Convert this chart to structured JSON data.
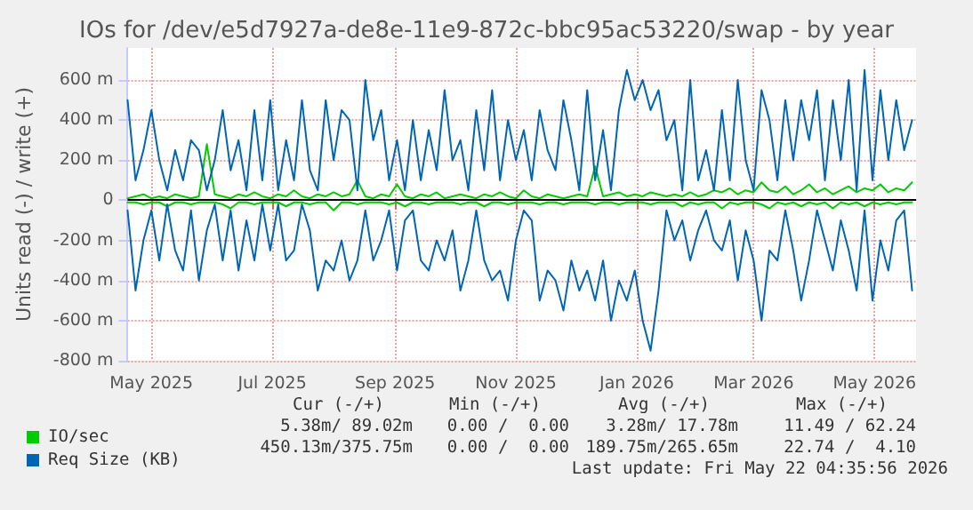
{
  "chart_data": {
    "type": "line",
    "title": "IOs for /dev/e5d7927a-de8e-11e9-872c-bbc95ac53220/swap - by year",
    "ylabel": "Units read (-) / write (+)",
    "x": [
      "2025-04-19",
      "2025-04-23",
      "2025-04-27",
      "2025-05-01",
      "2025-05-05",
      "2025-05-09",
      "2025-05-13",
      "2025-05-17",
      "2025-05-21",
      "2025-05-25",
      "2025-05-29",
      "2025-06-02",
      "2025-06-06",
      "2025-06-10",
      "2025-06-14",
      "2025-06-18",
      "2025-06-22",
      "2025-06-26",
      "2025-06-30",
      "2025-07-04",
      "2025-07-08",
      "2025-07-12",
      "2025-07-16",
      "2025-07-20",
      "2025-07-24",
      "2025-07-28",
      "2025-08-01",
      "2025-08-05",
      "2025-08-09",
      "2025-08-13",
      "2025-08-17",
      "2025-08-21",
      "2025-08-25",
      "2025-08-29",
      "2025-09-02",
      "2025-09-06",
      "2025-09-10",
      "2025-09-14",
      "2025-09-18",
      "2025-09-22",
      "2025-09-26",
      "2025-09-30",
      "2025-10-04",
      "2025-10-08",
      "2025-10-12",
      "2025-10-16",
      "2025-10-20",
      "2025-10-24",
      "2025-10-28",
      "2025-11-01",
      "2025-11-05",
      "2025-11-09",
      "2025-11-13",
      "2025-11-17",
      "2025-11-21",
      "2025-11-25",
      "2025-11-29",
      "2025-12-03",
      "2025-12-07",
      "2025-12-11",
      "2025-12-15",
      "2025-12-19",
      "2025-12-23",
      "2025-12-27",
      "2025-12-31",
      "2026-01-04",
      "2026-01-08",
      "2026-01-12",
      "2026-01-16",
      "2026-01-20",
      "2026-01-24",
      "2026-01-28",
      "2026-02-01",
      "2026-02-05",
      "2026-02-09",
      "2026-02-13",
      "2026-02-17",
      "2026-02-21",
      "2026-02-25",
      "2026-03-01",
      "2026-03-05",
      "2026-03-09",
      "2026-03-13",
      "2026-03-17",
      "2026-03-21",
      "2026-03-25",
      "2026-03-29",
      "2026-04-02",
      "2026-04-06",
      "2026-04-10",
      "2026-04-14",
      "2026-04-18",
      "2026-04-22",
      "2026-04-26",
      "2026-04-30",
      "2026-05-04",
      "2026-05-08",
      "2026-05-12",
      "2026-05-16",
      "2026-05-20"
    ],
    "series": [
      {
        "name": "IO/sec",
        "color": "#00cc00",
        "values": [
          10,
          20,
          30,
          10,
          20,
          10,
          30,
          20,
          10,
          20,
          280,
          30,
          20,
          10,
          30,
          20,
          40,
          20,
          10,
          30,
          20,
          50,
          20,
          10,
          30,
          20,
          40,
          20,
          30,
          100,
          20,
          10,
          30,
          20,
          80,
          20,
          10,
          30,
          20,
          40,
          10,
          20,
          30,
          20,
          10,
          30,
          20,
          40,
          20,
          10,
          50,
          20,
          10,
          30,
          20,
          10,
          20,
          30,
          20,
          170,
          20,
          30,
          40,
          20,
          30,
          20,
          40,
          30,
          20,
          30,
          20,
          40,
          20,
          30,
          50,
          40,
          60,
          30,
          50,
          40,
          90,
          50,
          40,
          70,
          30,
          50,
          80,
          40,
          60,
          30,
          50,
          70,
          40,
          60,
          50,
          80,
          40,
          60,
          50,
          90
        ]
      },
      {
        "color": "#00cc00",
        "values": [
          -10,
          -10,
          -20,
          -10,
          -10,
          -30,
          -10,
          -10,
          -20,
          -10,
          -10,
          -10,
          -20,
          -40,
          -10,
          -10,
          -20,
          -10,
          -10,
          -10,
          -30,
          -10,
          -10,
          -20,
          -10,
          -10,
          -50,
          -10,
          -10,
          -20,
          -10,
          -10,
          -10,
          -20,
          -10,
          -30,
          -10,
          -10,
          -20,
          -10,
          -10,
          -10,
          -20,
          -10,
          -10,
          -30,
          -10,
          -10,
          -20,
          -10,
          -10,
          -10,
          -20,
          -10,
          -10,
          -20,
          -10,
          -10,
          -10,
          -20,
          -10,
          -10,
          -20,
          -10,
          -10,
          -10,
          -20,
          -10,
          -10,
          -10,
          -30,
          -10,
          -20,
          -10,
          -10,
          -40,
          -10,
          -20,
          -10,
          -10,
          -20,
          -40,
          -10,
          -20,
          -10,
          -30,
          -10,
          -20,
          -10,
          -40,
          -10,
          -20,
          -10,
          -30,
          -10,
          -20,
          -10,
          -20,
          -10,
          -10
        ]
      },
      {
        "name": "Req Size (KB)",
        "color": "#0066b3",
        "values": [
          500,
          100,
          250,
          450,
          200,
          50,
          250,
          100,
          300,
          250,
          50,
          200,
          450,
          150,
          300,
          50,
          450,
          100,
          500,
          50,
          300,
          100,
          500,
          150,
          50,
          500,
          200,
          450,
          400,
          50,
          600,
          300,
          450,
          100,
          300,
          50,
          400,
          100,
          350,
          150,
          550,
          200,
          300,
          50,
          450,
          150,
          550,
          100,
          400,
          200,
          350,
          100,
          450,
          250,
          150,
          500,
          300,
          50,
          550,
          100,
          350,
          50,
          450,
          650,
          500,
          600,
          450,
          550,
          300,
          400,
          50,
          600,
          100,
          250,
          50,
          450,
          100,
          600,
          200,
          50,
          550,
          400,
          100,
          500,
          200,
          500,
          300,
          550,
          100,
          500,
          200,
          600,
          50,
          650,
          100,
          550,
          200,
          500,
          250,
          400
        ]
      },
      {
        "color": "#0066b3",
        "values": [
          -50,
          -450,
          -200,
          -50,
          -300,
          -20,
          -250,
          -350,
          -50,
          -400,
          -150,
          -20,
          -300,
          -50,
          -350,
          -100,
          -300,
          -20,
          -250,
          -20,
          -300,
          -250,
          -20,
          -150,
          -450,
          -300,
          -350,
          -200,
          -400,
          -300,
          -50,
          -300,
          -200,
          -50,
          -350,
          -100,
          -50,
          -300,
          -350,
          -200,
          -300,
          -150,
          -450,
          -300,
          -50,
          -300,
          -400,
          -350,
          -500,
          -200,
          -50,
          -100,
          -500,
          -350,
          -400,
          -550,
          -300,
          -450,
          -350,
          -500,
          -300,
          -600,
          -400,
          -500,
          -350,
          -600,
          -750,
          -450,
          -50,
          -200,
          -100,
          -300,
          -150,
          -50,
          -200,
          -250,
          -100,
          -400,
          -150,
          -300,
          -600,
          -250,
          -300,
          -50,
          -250,
          -500,
          -300,
          -50,
          -200,
          -350,
          -100,
          -250,
          -450,
          -50,
          -500,
          -200,
          -350,
          -100,
          -50,
          -450
        ]
      }
    ],
    "xlim": [
      "2025-04-19",
      "2026-05-22"
    ],
    "xticks": [
      {
        "value": "2025-05-01",
        "label": "May 2025"
      },
      {
        "value": "2025-07-01",
        "label": "Jul 2025"
      },
      {
        "value": "2025-09-01",
        "label": "Sep 2025"
      },
      {
        "value": "2025-11-01",
        "label": "Nov 2025"
      },
      {
        "value": "2026-01-01",
        "label": "Jan 2026"
      },
      {
        "value": "2026-03-01",
        "label": "Mar 2026"
      },
      {
        "value": "2026-05-01",
        "label": "May 2026"
      }
    ],
    "ylim": [
      -800,
      760
    ],
    "yticks": [
      {
        "value": -800,
        "label": "-800 m"
      },
      {
        "value": -600,
        "label": "-600 m"
      },
      {
        "value": -400,
        "label": "-400 m"
      },
      {
        "value": -200,
        "label": "-200 m"
      },
      0,
      {
        "value": 200,
        "label": "200 m"
      },
      {
        "value": 400,
        "label": "400 m"
      },
      {
        "value": 600,
        "label": "600 m"
      }
    ],
    "ref_lines": [
      {
        "axis": "y",
        "value": 0,
        "color": "#000000"
      }
    ],
    "grid": true,
    "legend": "bottom left",
    "marker": "none",
    "line_style": "solid",
    "annotations": [
      "Cur (-/+)",
      "Min (-/+)",
      "Avg (-/+)",
      "Max (-/+)",
      "5.38m/ 89.02m",
      "0.00 /  0.00",
      "3.28m/ 17.78m",
      "11.49 / 62.24",
      "450.13m/375.75m",
      "0.00 /  0.00",
      "189.75m/265.65m",
      "22.74 /  4.10",
      "Last update: Fri May 22 04:35:56 2026"
    ]
  }
}
